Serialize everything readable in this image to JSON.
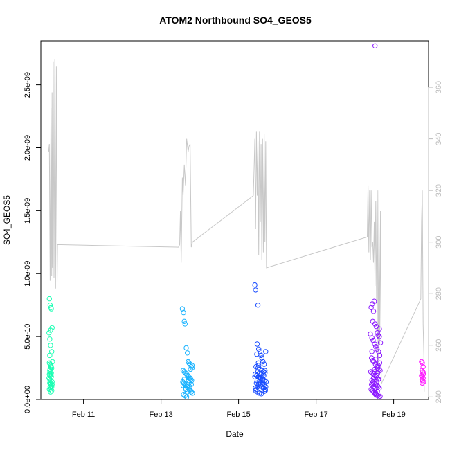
{
  "chart_data": {
    "type": "scatter",
    "title": "ATOM2 Northbound SO4_GEOS5",
    "xlabel": "Date",
    "ylabel": "SO4_GEOS5",
    "x_unit": "days in February",
    "xlim": [
      9.9,
      19.9
    ],
    "ylim": [
      0,
      2.85e-09
    ],
    "x_ticks": [
      {
        "value": 11,
        "label": "Feb 11"
      },
      {
        "value": 13,
        "label": "Feb 13"
      },
      {
        "value": 15,
        "label": "Feb 15"
      },
      {
        "value": 17,
        "label": "Feb 17"
      },
      {
        "value": 19,
        "label": "Feb 19"
      }
    ],
    "y_ticks": [
      {
        "value": 0,
        "label": "0.0e+00"
      },
      {
        "value": 5e-10,
        "label": "5.0e-10"
      },
      {
        "value": 1e-09,
        "label": "1.0e-09"
      },
      {
        "value": 1.5e-09,
        "label": "1.5e-09"
      },
      {
        "value": 2e-09,
        "label": "2.0e-09"
      },
      {
        "value": 2.5e-09,
        "label": "2.5e-09"
      }
    ],
    "y2lim": [
      239,
      378
    ],
    "y2_ticks": [
      {
        "value": 240,
        "label": "240"
      },
      {
        "value": 260,
        "label": "260"
      },
      {
        "value": 280,
        "label": "280"
      },
      {
        "value": 300,
        "label": "300"
      },
      {
        "value": 320,
        "label": "320"
      },
      {
        "value": 340,
        "label": "340"
      },
      {
        "value": 360,
        "label": "360"
      }
    ],
    "colors": {
      "line": "#c8c8c8",
      "axis": "#000000",
      "right_axis": "#bdbdbd",
      "points": [
        "#00ffbf",
        "#00bfff",
        "#0040ff",
        "#7f00ff",
        "#ff00ff"
      ]
    },
    "series": [
      {
        "color": "#1affb3",
        "x": [
          10.12,
          10.14,
          10.16,
          10.17,
          10.19,
          10.11,
          10.13,
          10.15,
          10.18,
          10.2,
          10.12,
          10.14,
          10.16,
          10.18,
          10.13,
          10.15,
          10.17,
          10.12,
          10.14,
          10.16,
          10.19,
          10.13,
          10.15,
          10.17,
          10.14,
          10.16,
          10.12,
          10.18,
          10.15,
          10.13,
          10.17,
          10.14,
          10.16,
          10.19,
          10.11,
          10.15,
          10.13,
          10.18,
          10.16,
          10.14
        ],
        "y": [
          8e-10,
          7.5e-10,
          7.3e-10,
          7.2e-10,
          5.7e-10,
          5.3e-10,
          4.8e-10,
          4.3e-10,
          3.8e-10,
          3e-10,
          2.9e-10,
          2.8e-10,
          2.7e-10,
          2.5e-10,
          2.3e-10,
          2.2e-10,
          2.1e-10,
          2e-10,
          1.9e-10,
          1.5e-10,
          1.4e-10,
          1.3e-10,
          1.2e-10,
          1.1e-10,
          1e-10,
          9e-11,
          8e-11,
          7e-11,
          6e-11,
          1.6e-10,
          1.8e-10,
          2.4e-10,
          2.6e-10,
          1.2e-10,
          1.7e-10,
          5.5e-10,
          3.5e-10,
          1e-10,
          1.3e-10,
          2e-10
        ]
      },
      {
        "color": "#1ab3ff",
        "x": [
          13.55,
          13.58,
          13.6,
          13.62,
          13.65,
          13.68,
          13.7,
          13.72,
          13.75,
          13.78,
          13.8,
          13.57,
          13.6,
          13.63,
          13.66,
          13.69,
          13.71,
          13.74,
          13.77,
          13.79,
          13.56,
          13.59,
          13.61,
          13.64,
          13.67,
          13.7,
          13.73,
          13.76,
          13.78,
          13.81,
          13.58,
          13.62,
          13.66,
          13.7,
          13.74,
          13.78,
          13.6,
          13.64,
          13.68,
          13.72,
          13.76,
          13.8,
          13.57,
          13.63,
          13.69,
          13.75
        ],
        "y": [
          7.2e-10,
          6.9e-10,
          6.2e-10,
          6e-10,
          4.1e-10,
          3.7e-10,
          3e-10,
          2.9e-10,
          2.8e-10,
          2.6e-10,
          2.5e-10,
          2.3e-10,
          2.2e-10,
          2.1e-10,
          2e-10,
          1.9e-10,
          1.8e-10,
          1.7e-10,
          1.6e-10,
          1.5e-10,
          1.4e-10,
          1.3e-10,
          1.2e-10,
          1.1e-10,
          1e-10,
          9e-11,
          8e-11,
          7e-11,
          6e-11,
          5e-11,
          4e-11,
          3e-11,
          2e-11,
          1.5e-10,
          1e-10,
          1.2e-10,
          1.6e-10,
          8e-11,
          6e-11,
          1.3e-10,
          2.4e-10,
          2.7e-10,
          1.1e-10,
          9e-11,
          1.4e-10,
          1.7e-10
        ]
      },
      {
        "color": "#1a4dff",
        "x": [
          15.42,
          15.44,
          15.5,
          15.48,
          15.52,
          15.55,
          15.58,
          15.6,
          15.63,
          15.66,
          15.7,
          15.45,
          15.5,
          15.55,
          15.6,
          15.65,
          15.68,
          15.43,
          15.47,
          15.53,
          15.57,
          15.62,
          15.67,
          15.71,
          15.46,
          15.51,
          15.56,
          15.61,
          15.64,
          15.69,
          15.44,
          15.49,
          15.54,
          15.59,
          15.66,
          15.42,
          15.48,
          15.52,
          15.58,
          15.63,
          15.7,
          15.45,
          15.5,
          15.55,
          15.6,
          15.65,
          15.47,
          15.53,
          15.57,
          15.62,
          15.68,
          15.43,
          15.51,
          15.56,
          15.61,
          15.66,
          15.69,
          15.49,
          15.54
        ],
        "y": [
          9.1e-10,
          8.7e-10,
          7.5e-10,
          4.4e-10,
          4e-10,
          3.8e-10,
          3.5e-10,
          3.3e-10,
          3e-10,
          2.8e-10,
          3.8e-10,
          2.6e-10,
          2.5e-10,
          2.4e-10,
          2.3e-10,
          2.2e-10,
          2.1e-10,
          2e-10,
          1.9e-10,
          1.8e-10,
          1.7e-10,
          1.6e-10,
          1.5e-10,
          1.4e-10,
          1.3e-10,
          1.2e-10,
          1.1e-10,
          1e-10,
          9e-11,
          8e-11,
          7e-11,
          6e-11,
          5e-11,
          4.5e-11,
          6.5e-11,
          1.8e-10,
          1.5e-10,
          2.7e-10,
          2e-10,
          1.3e-10,
          1e-10,
          8e-11,
          2.2e-10,
          1.6e-10,
          1.2e-10,
          1.9e-10,
          3.6e-10,
          1.4e-10,
          1.1e-10,
          1.7e-10,
          2.3e-10,
          9e-11,
          2.9e-10,
          1.8e-10,
          1.5e-10,
          1.2e-10,
          7e-11,
          1e-10,
          2.1e-10
        ]
      },
      {
        "color": "#8c1aff",
        "x": [
          18.45,
          18.5,
          18.42,
          18.48,
          18.52,
          18.55,
          18.58,
          18.6,
          18.63,
          18.66,
          18.4,
          18.44,
          18.47,
          18.51,
          18.54,
          18.57,
          18.61,
          18.64,
          18.43,
          18.46,
          18.49,
          18.53,
          18.56,
          18.59,
          18.62,
          18.65,
          18.41,
          18.45,
          18.48,
          18.52,
          18.55,
          18.58,
          18.61,
          18.44,
          18.47,
          18.5,
          18.54,
          18.57,
          18.6,
          18.63,
          18.42,
          18.46,
          18.49,
          18.53,
          18.56,
          18.59,
          18.62,
          18.65,
          18.43,
          18.48,
          18.51,
          18.55,
          18.58,
          18.61,
          18.64,
          18.45,
          18.5,
          18.53,
          18.57,
          18.6,
          18.44,
          18.49,
          18.52,
          18.56,
          18.59,
          18.63,
          18.46,
          18.51,
          18.54,
          18.58
        ],
        "y": [
          7.6e-10,
          7.8e-10,
          7.3e-10,
          7e-10,
          6e-10,
          5.8e-10,
          5.3e-10,
          5.1e-10,
          5e-10,
          4.5e-10,
          5.2e-10,
          4.9e-10,
          4.7e-10,
          4.4e-10,
          4.2e-10,
          4e-10,
          3.8e-10,
          3.5e-10,
          3.3e-10,
          3.1e-10,
          3e-10,
          2.8e-10,
          2.6e-10,
          2.5e-10,
          2.4e-10,
          2.3e-10,
          2.2e-10,
          2.1e-10,
          2e-10,
          1.9e-10,
          1.8e-10,
          1.7e-10,
          1.6e-10,
          1.5e-10,
          1.4e-10,
          1.3e-10,
          1.2e-10,
          1.1e-10,
          1e-10,
          9e-11,
          8e-11,
          7e-11,
          6e-11,
          5e-11,
          4e-11,
          3e-11,
          2e-11,
          2.5e-11,
          1.2e-10,
          1.7e-10,
          2.2e-10,
          3.5e-11,
          6.5e-11,
          1.6e-10,
          2.9e-10,
          1.3e-10,
          8.5e-11,
          5.5e-11,
          1.9e-10,
          2.7e-10,
          3.8e-10,
          1e-10,
          4.5e-11,
          1.4e-10,
          2.1e-10,
          5.6e-10,
          6.2e-10,
          2.4e-10,
          3.2e-10,
          1.1e-10
        ]
      },
      {
        "color": "#ff1aff",
        "x": [
          19.72,
          19.74,
          19.76,
          19.73,
          19.75,
          19.77,
          19.72,
          19.74,
          19.76,
          19.73,
          19.75,
          19.77,
          19.74,
          19.76
        ],
        "y": [
          3e-10,
          2.9e-10,
          2.6e-10,
          2.3e-10,
          2.2e-10,
          2.1e-10,
          1.9e-10,
          1.8e-10,
          1.7e-10,
          1.6e-10,
          1.5e-10,
          1.4e-10,
          1.3e-10,
          2e-10
        ]
      }
    ],
    "line_series": {
      "axis": "right",
      "x": [
        10.1,
        10.12,
        10.14,
        10.16,
        10.18,
        10.19,
        10.2,
        10.22,
        10.24,
        10.26,
        10.28,
        10.3,
        10.32,
        10.33,
        13.45,
        13.48,
        13.5,
        13.52,
        13.55,
        13.57,
        13.6,
        13.63,
        13.66,
        13.7,
        13.72,
        13.75,
        13.78,
        13.81,
        15.38,
        15.4,
        15.42,
        15.44,
        15.46,
        15.48,
        15.5,
        15.52,
        15.54,
        15.56,
        15.58,
        15.6,
        15.62,
        15.64,
        15.66,
        15.68,
        15.7,
        15.72,
        18.32,
        18.34,
        18.36,
        18.38,
        18.4,
        18.42,
        18.44,
        18.46,
        18.48,
        18.5,
        18.52,
        18.54,
        18.56,
        18.58,
        18.6,
        18.62,
        18.64,
        18.66,
        18.68,
        19.7,
        19.72,
        19.74,
        19.76,
        19.78,
        19.79
      ],
      "y": [
        335,
        338,
        285,
        352,
        287,
        358,
        290,
        370,
        286,
        371,
        282,
        368,
        284,
        299,
        298,
        299,
        312,
        292,
        325,
        318,
        330,
        322,
        340,
        335,
        337,
        338,
        298,
        300,
        318,
        328,
        340,
        305,
        343,
        318,
        339,
        295,
        343,
        308,
        338,
        293,
        340,
        296,
        342,
        300,
        339,
        290,
        302,
        322,
        296,
        320,
        293,
        320,
        298,
        300,
        292,
        308,
        283,
        316,
        276,
        320,
        249,
        320,
        260,
        312,
        245,
        278,
        308,
        320,
        268,
        256,
        242
      ]
    }
  }
}
